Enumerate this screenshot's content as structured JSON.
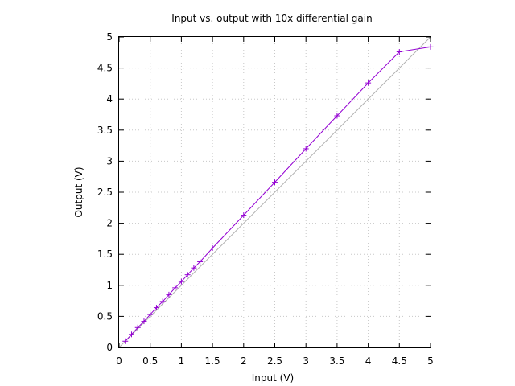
{
  "chart_data": {
    "type": "line",
    "title": "Input vs. output with 10x differential gain",
    "xlabel": "Input (V)",
    "ylabel": "Output (V)",
    "xlim": [
      0,
      5
    ],
    "ylim": [
      0,
      5
    ],
    "grid": true,
    "xticks": [
      "0",
      "0.5",
      "1",
      "1.5",
      "2",
      "2.5",
      "3",
      "3.5",
      "4",
      "4.5",
      "5"
    ],
    "yticks": [
      "0",
      "0.5",
      "1",
      "1.5",
      "2",
      "2.5",
      "3",
      "3.5",
      "4",
      "4.5",
      "5"
    ],
    "reference_line": {
      "x": [
        0,
        5
      ],
      "y": [
        0,
        5
      ],
      "color": "#b0b0b0"
    },
    "series": [
      {
        "color": "#9400d3",
        "marker": "plus",
        "x": [
          0.1,
          0.2,
          0.3,
          0.4,
          0.5,
          0.6,
          0.7,
          0.8,
          0.9,
          1.0,
          1.1,
          1.2,
          1.3,
          1.5,
          2.0,
          2.5,
          3.0,
          3.5,
          4.0,
          4.5,
          5.0
        ],
        "y": [
          0.1,
          0.21,
          0.32,
          0.42,
          0.53,
          0.64,
          0.74,
          0.85,
          0.96,
          1.06,
          1.17,
          1.28,
          1.38,
          1.6,
          2.13,
          2.66,
          3.2,
          3.73,
          4.26,
          4.76,
          4.84
        ]
      }
    ]
  }
}
